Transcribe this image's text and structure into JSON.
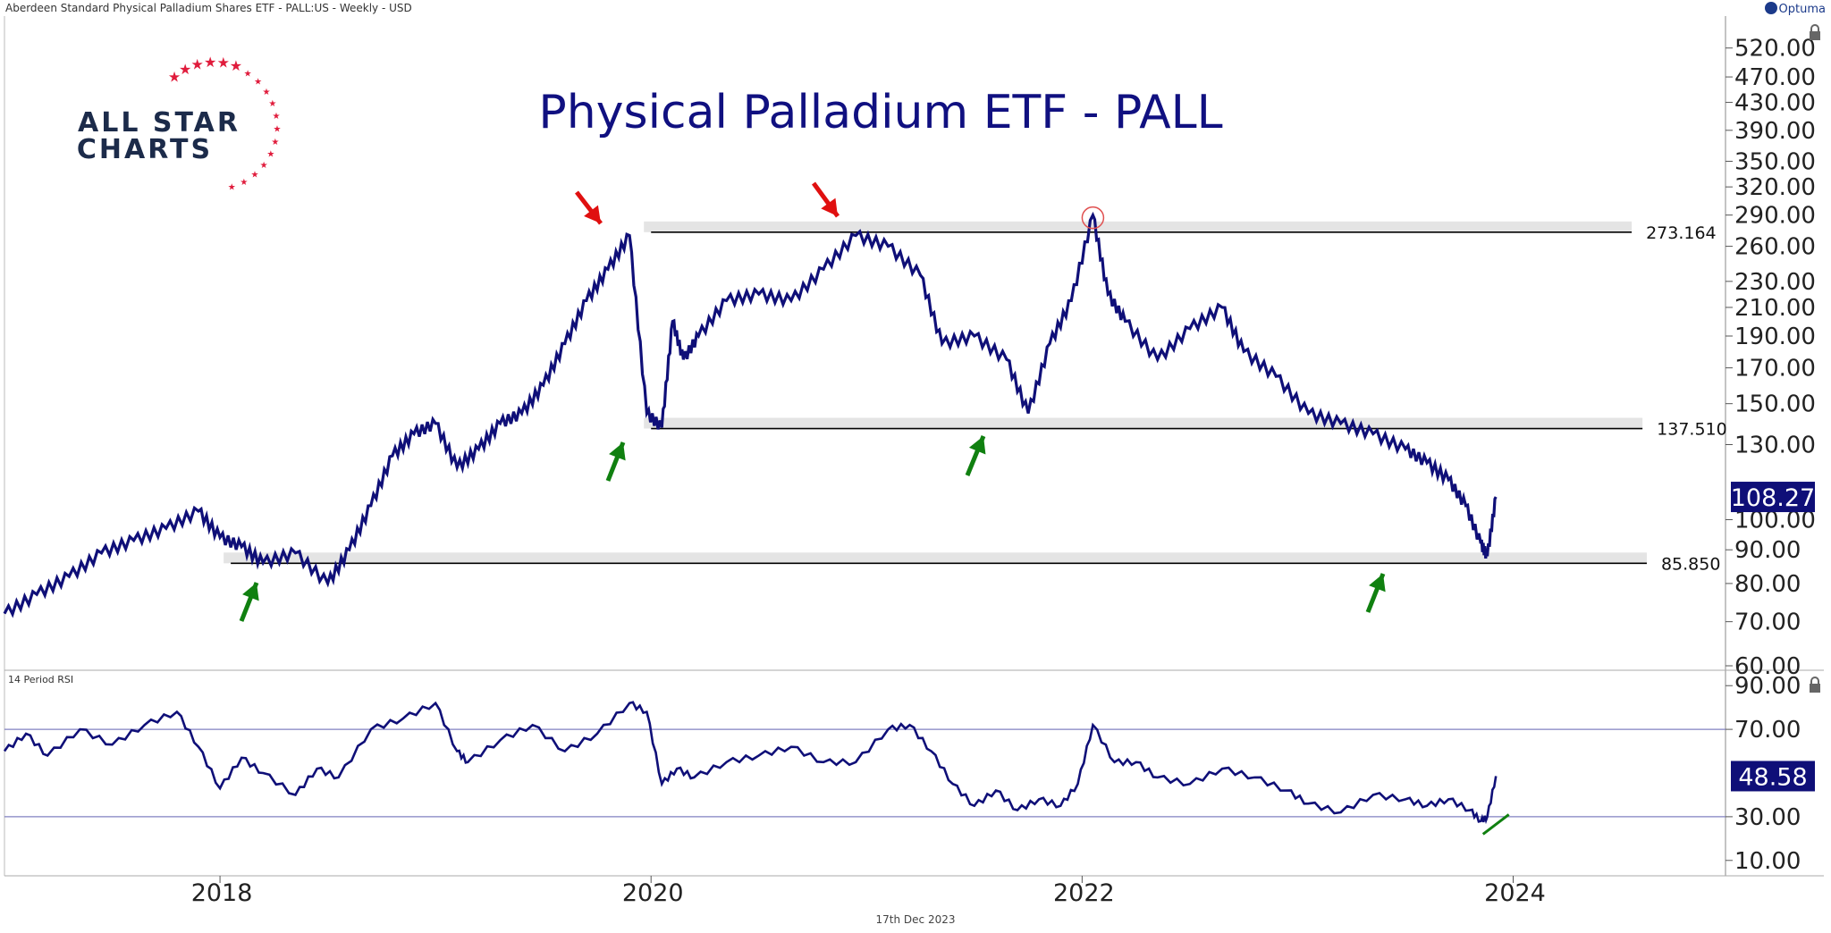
{
  "header": {
    "instrument": "Aberdeen Standard Physical Palladium Shares ETF - PALL:US - Weekly - USD",
    "brand": "Optuma"
  },
  "logo": {
    "line1": "ALL STAR",
    "line2": "CHARTS"
  },
  "footer": {
    "date": "17th Dec 2023"
  },
  "colors": {
    "price": "#0f0f78",
    "arrow_up": "#108010",
    "arrow_down": "#e01010",
    "level_line": "#000000",
    "band": "#d9d9d9",
    "rsi_ref": "#8080c0",
    "last_label_bg": "#0f0f78"
  },
  "chart_data": [
    {
      "type": "line",
      "title": "Physical Palladium ETF - PALL",
      "scale": "log",
      "ylim": [
        60,
        560
      ],
      "y_ticks": [
        "520.00",
        "470.00",
        "430.00",
        "390.00",
        "350.00",
        "320.00",
        "290.00",
        "260.00",
        "230.00",
        "210.00",
        "190.00",
        "170.00",
        "150.00",
        "130.00",
        "100.00",
        "90.00",
        "80.00",
        "70.00",
        "60.00"
      ],
      "x_ticks": [
        "2018",
        "2020",
        "2022",
        "2024"
      ],
      "x_range": [
        2017.0,
        2025.4
      ],
      "series": [
        {
          "x": [
            2017.0,
            2017.15,
            2017.3,
            2017.45,
            2017.6,
            2017.75,
            2017.9,
            2018.0,
            2018.1,
            2018.2,
            2018.35,
            2018.5,
            2018.6,
            2018.7,
            2018.8,
            2018.9,
            2019.0,
            2019.1,
            2019.2,
            2019.3,
            2019.4,
            2019.5,
            2019.6,
            2019.7,
            2019.8,
            2019.9,
            2019.98,
            2020.05,
            2020.1,
            2020.15,
            2020.22,
            2020.35,
            2020.5,
            2020.65,
            2020.8,
            2020.95,
            2021.1,
            2021.25,
            2021.35,
            2021.5,
            2021.65,
            2021.75,
            2021.85,
            2021.95,
            2022.05,
            2022.12,
            2022.2,
            2022.35,
            2022.5,
            2022.65,
            2022.75,
            2022.9,
            2023.05,
            2023.2,
            2023.35,
            2023.5,
            2023.6,
            2023.7,
            2023.78,
            2023.85,
            2023.88,
            2023.92
          ],
          "values": [
            72,
            77,
            82,
            89,
            93,
            97,
            103,
            94,
            91,
            86,
            89,
            80,
            90,
            105,
            125,
            135,
            140,
            120,
            128,
            140,
            145,
            160,
            185,
            215,
            240,
            270,
            145,
            138,
            200,
            175,
            190,
            215,
            220,
            215,
            240,
            270,
            260,
            235,
            185,
            190,
            175,
            145,
            185,
            215,
            290,
            220,
            200,
            175,
            195,
            210,
            180,
            165,
            145,
            140,
            135,
            128,
            122,
            115,
            105,
            92,
            88,
            108.27
          ]
        }
      ],
      "levels": [
        {
          "value": 273.164,
          "label": "273.164"
        },
        {
          "value": 137.51,
          "label": "137.510"
        },
        {
          "value": 85.85,
          "label": "85.850"
        }
      ],
      "last_value": "108.27"
    },
    {
      "type": "line",
      "title": "14 Period RSI",
      "ylim": [
        5,
        95
      ],
      "y_ticks": [
        "90.00",
        "70.00",
        "30.00",
        "10.00"
      ],
      "reference_lines": [
        70,
        30
      ],
      "series": [
        {
          "x": [
            2017.0,
            2017.1,
            2017.2,
            2017.35,
            2017.5,
            2017.65,
            2017.8,
            2017.9,
            2018.0,
            2018.1,
            2018.2,
            2018.35,
            2018.45,
            2018.55,
            2018.7,
            2018.85,
            2019.0,
            2019.1,
            2019.15,
            2019.3,
            2019.45,
            2019.6,
            2019.75,
            2019.9,
            2019.98,
            2020.05,
            2020.12,
            2020.2,
            2020.35,
            2020.5,
            2020.65,
            2020.8,
            2020.95,
            2021.1,
            2021.2,
            2021.3,
            2021.4,
            2021.5,
            2021.6,
            2021.7,
            2021.8,
            2021.9,
            2021.98,
            2022.05,
            2022.15,
            2022.25,
            2022.35,
            2022.5,
            2022.65,
            2022.8,
            2022.95,
            2023.05,
            2023.2,
            2023.35,
            2023.5,
            2023.6,
            2023.7,
            2023.8,
            2023.85,
            2023.88,
            2023.92
          ],
          "values": [
            60,
            68,
            58,
            70,
            63,
            72,
            78,
            62,
            43,
            57,
            50,
            40,
            52,
            48,
            70,
            75,
            82,
            60,
            55,
            65,
            72,
            60,
            68,
            82,
            78,
            45,
            52,
            48,
            55,
            58,
            62,
            55,
            55,
            70,
            72,
            60,
            45,
            35,
            42,
            33,
            38,
            35,
            45,
            72,
            55,
            55,
            48,
            45,
            52,
            48,
            42,
            36,
            32,
            40,
            38,
            35,
            38,
            33,
            28,
            30,
            48.58
          ]
        }
      ],
      "last_value": "48.58"
    }
  ]
}
